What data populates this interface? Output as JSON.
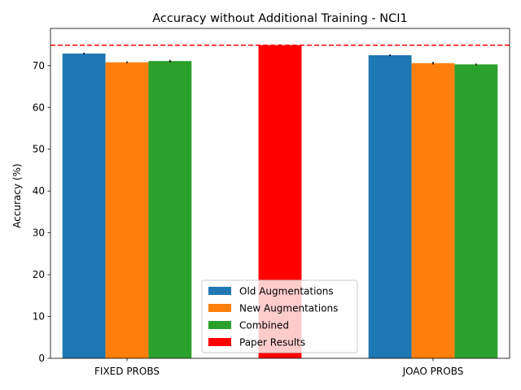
{
  "chart_data": {
    "type": "bar",
    "title": "Accuracy without Additional Training - NCI1",
    "xlabel": "",
    "ylabel": "Accuracy (%)",
    "ylim": [
      0,
      78.9
    ],
    "yticks": [
      0,
      10,
      20,
      30,
      40,
      50,
      60,
      70
    ],
    "grid": false,
    "legend_position": "lower center",
    "categories": [
      "FIXED PROBS",
      "JOAO PROBS"
    ],
    "series": [
      {
        "name": "Old Augmentations",
        "color": "#1f77b4",
        "values": [
          72.9,
          72.5
        ],
        "errors": [
          0.2,
          0.2
        ]
      },
      {
        "name": "New Augmentations",
        "color": "#ff7f0e",
        "values": [
          70.8,
          70.6
        ],
        "errors": [
          0.2,
          0.3
        ]
      },
      {
        "name": "Combined",
        "color": "#2ca02c",
        "values": [
          71.1,
          70.3
        ],
        "errors": [
          0.3,
          0.2
        ]
      }
    ],
    "reference": {
      "name": "Paper Results",
      "color": "#ff0000",
      "value": 74.9,
      "error": 0.2,
      "line_style": "dashed"
    }
  }
}
